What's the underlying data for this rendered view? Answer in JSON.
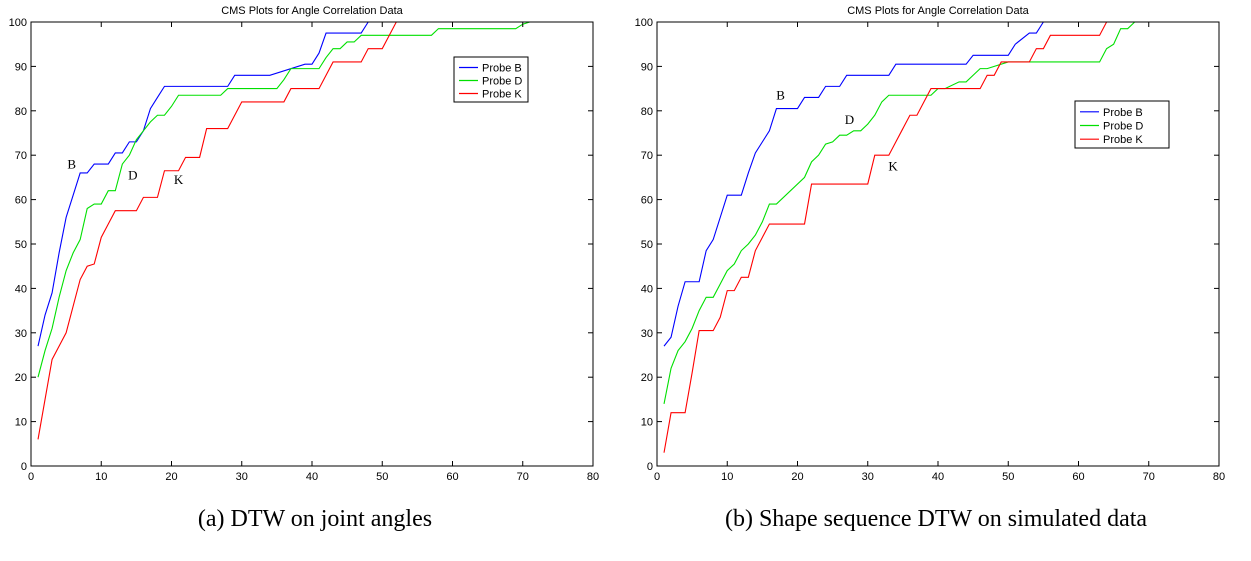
{
  "captions": {
    "a": "(a) DTW on joint angles",
    "b": "(b) Shape sequence DTW on simulated data"
  },
  "chart_data": [
    {
      "type": "line",
      "title": "CMS Plots for Angle Correlation Data",
      "xlabel": "",
      "ylabel": "",
      "xlim": [
        0,
        80
      ],
      "ylim": [
        0,
        100
      ],
      "xticks": [
        0,
        10,
        20,
        30,
        40,
        50,
        60,
        70,
        80
      ],
      "yticks": [
        0,
        10,
        20,
        30,
        40,
        50,
        60,
        70,
        80,
        90,
        100
      ],
      "grid": false,
      "legend_position": "top-right",
      "series": [
        {
          "name": "Probe B",
          "color": "#0000ff",
          "x": [
            1,
            2,
            3,
            4,
            5,
            6,
            7,
            8,
            9,
            10,
            11,
            12,
            13,
            14,
            15,
            16,
            17,
            18,
            19,
            20,
            27,
            28,
            29,
            33,
            34,
            39,
            40,
            41,
            42,
            46,
            47,
            48,
            49,
            52,
            72
          ],
          "y": [
            27,
            34,
            39,
            48,
            56,
            61,
            66,
            66,
            68,
            68,
            68,
            70.5,
            70.5,
            73,
            73,
            75.5,
            80.5,
            83,
            85.5,
            85.5,
            85.5,
            85.5,
            88,
            88,
            88,
            90.5,
            90.5,
            93,
            97.5,
            97.5,
            97.5,
            100,
            100,
            100,
            100
          ]
        },
        {
          "name": "Probe D",
          "color": "#00e000",
          "x": [
            1,
            2,
            3,
            4,
            5,
            6,
            7,
            8,
            9,
            10,
            11,
            12,
            13,
            14,
            15,
            16,
            17,
            18,
            19,
            20,
            21,
            27,
            28,
            35,
            36,
            37,
            40,
            41,
            42,
            43,
            44,
            45,
            46,
            47,
            49,
            50,
            57,
            58,
            69,
            70,
            71,
            72
          ],
          "y": [
            20,
            26,
            31,
            38,
            44,
            48,
            51,
            58,
            59,
            59,
            62,
            62,
            68,
            70,
            73.5,
            75.5,
            77.5,
            79,
            79,
            81,
            83.5,
            83.5,
            85,
            85,
            87,
            89.5,
            89.5,
            89.5,
            92,
            94,
            94,
            95.5,
            95.5,
            97,
            97,
            97,
            97,
            98.5,
            98.5,
            99.5,
            100,
            100
          ]
        },
        {
          "name": "Probe K",
          "color": "#ff0000",
          "x": [
            1,
            2,
            3,
            4,
            5,
            6,
            7,
            8,
            9,
            10,
            11,
            12,
            13,
            15,
            16,
            18,
            19,
            21,
            22,
            23,
            24,
            25,
            28,
            29,
            30,
            36,
            37,
            41,
            42,
            43,
            46,
            47,
            48,
            49,
            50,
            51,
            52,
            72
          ],
          "y": [
            6,
            15,
            24,
            27,
            30,
            36,
            42,
            45,
            45.5,
            51.5,
            54.5,
            57.5,
            57.5,
            57.5,
            60.5,
            60.5,
            66.5,
            66.5,
            69.5,
            69.5,
            69.5,
            76,
            76,
            79,
            82,
            82,
            85,
            85,
            88,
            91,
            91,
            91,
            94,
            94,
            94,
            97,
            100,
            100
          ]
        }
      ],
      "annotations": [
        {
          "text": "B",
          "x": 5.8,
          "y": 67
        },
        {
          "text": "D",
          "x": 14.5,
          "y": 64.5
        },
        {
          "text": "K",
          "x": 21,
          "y": 63.5
        }
      ]
    },
    {
      "type": "line",
      "title": "CMS Plots for Angle Correlation Data",
      "xlabel": "",
      "ylabel": "",
      "xlim": [
        0,
        80
      ],
      "ylim": [
        0,
        100
      ],
      "xticks": [
        0,
        10,
        20,
        30,
        40,
        50,
        60,
        70,
        80
      ],
      "yticks": [
        0,
        10,
        20,
        30,
        40,
        50,
        60,
        70,
        80,
        90,
        100
      ],
      "grid": false,
      "legend_position": "upper-right",
      "series": [
        {
          "name": "Probe B",
          "color": "#0000ff",
          "x": [
            1,
            2,
            3,
            4,
            5,
            6,
            7,
            8,
            9,
            10,
            11,
            12,
            13,
            14,
            15,
            16,
            17,
            18,
            19,
            20,
            21,
            22,
            23,
            24,
            25,
            26,
            27,
            33,
            34,
            44,
            45,
            50,
            51,
            53,
            54,
            55,
            62,
            63,
            72
          ],
          "y": [
            27,
            29,
            36,
            41.5,
            41.5,
            41.5,
            48.5,
            51,
            56,
            61,
            61,
            61,
            66,
            70.5,
            73,
            75.5,
            80.5,
            80.5,
            80.5,
            80.5,
            83,
            83,
            83,
            85.5,
            85.5,
            85.5,
            88,
            88,
            90.5,
            90.5,
            92.5,
            92.5,
            95,
            97.5,
            97.5,
            100,
            100,
            100,
            100
          ]
        },
        {
          "name": "Probe D",
          "color": "#00e000",
          "x": [
            1,
            2,
            3,
            4,
            5,
            6,
            7,
            8,
            9,
            10,
            11,
            12,
            13,
            14,
            15,
            16,
            17,
            21,
            22,
            23,
            24,
            25,
            26,
            27,
            28,
            29,
            30,
            31,
            32,
            33,
            34,
            39,
            40,
            41,
            43,
            44,
            45,
            46,
            47,
            50,
            51,
            63,
            64,
            65,
            66,
            67,
            68,
            72
          ],
          "y": [
            14,
            22,
            26,
            28,
            31,
            35,
            38,
            38,
            41,
            44,
            45.5,
            48.5,
            50,
            52,
            55,
            59,
            59,
            65,
            68.5,
            70,
            72.5,
            73,
            74.5,
            74.5,
            75.5,
            75.5,
            77,
            79,
            82,
            83.5,
            83.5,
            83.5,
            85,
            85,
            86.5,
            86.5,
            88,
            89.5,
            89.5,
            91,
            91,
            91,
            94,
            95,
            98.5,
            98.5,
            100,
            100
          ]
        },
        {
          "name": "Probe K",
          "color": "#ff0000",
          "x": [
            1,
            2,
            3,
            4,
            5,
            6,
            7,
            8,
            9,
            10,
            11,
            12,
            13,
            14,
            15,
            16,
            17,
            21,
            22,
            30,
            31,
            32,
            33,
            34,
            35,
            36,
            37,
            38,
            39,
            40,
            46,
            47,
            48,
            49,
            50,
            51,
            53,
            54,
            55,
            56,
            57,
            63,
            64,
            72
          ],
          "y": [
            3,
            12,
            12,
            12,
            21,
            30.5,
            30.5,
            30.5,
            33.5,
            39.5,
            39.5,
            42.5,
            42.5,
            48.5,
            51.5,
            54.5,
            54.5,
            54.5,
            63.5,
            63.5,
            70,
            70,
            70,
            73,
            76,
            79,
            79,
            82,
            85,
            85,
            85,
            88,
            88,
            91,
            91,
            91,
            91,
            94,
            94,
            97,
            97,
            97,
            100,
            100
          ]
        }
      ],
      "annotations": [
        {
          "text": "B",
          "x": 17.6,
          "y": 82.5
        },
        {
          "text": "D",
          "x": 27.4,
          "y": 77
        },
        {
          "text": "K",
          "x": 33.6,
          "y": 66.5
        }
      ]
    }
  ]
}
